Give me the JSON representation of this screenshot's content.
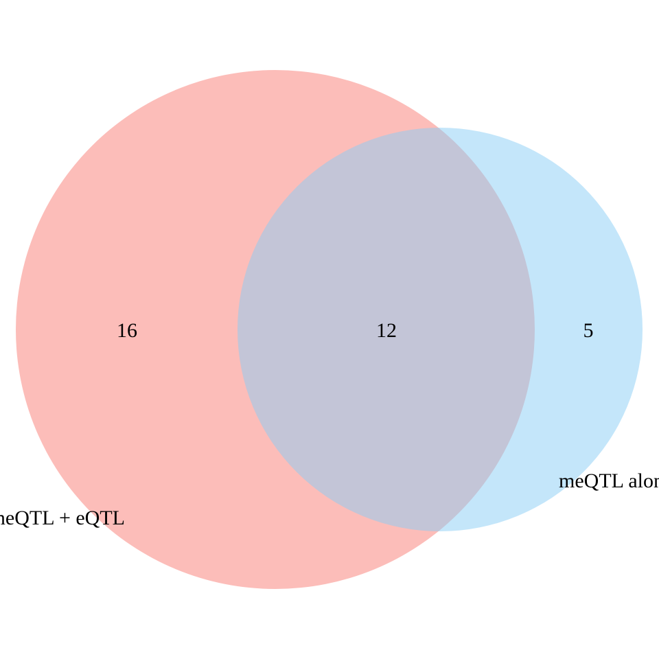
{
  "diagram": {
    "type": "venn",
    "sets": [
      {
        "label": "meQTL + eQTL",
        "only_count": "16",
        "color": "#F8766D",
        "opacity": 0.48
      },
      {
        "label": "meQTL alone",
        "only_count": "5",
        "color": "#8ACDF5",
        "opacity": 0.5
      }
    ],
    "intersection_count": "12",
    "background": "#FFFFFF"
  }
}
